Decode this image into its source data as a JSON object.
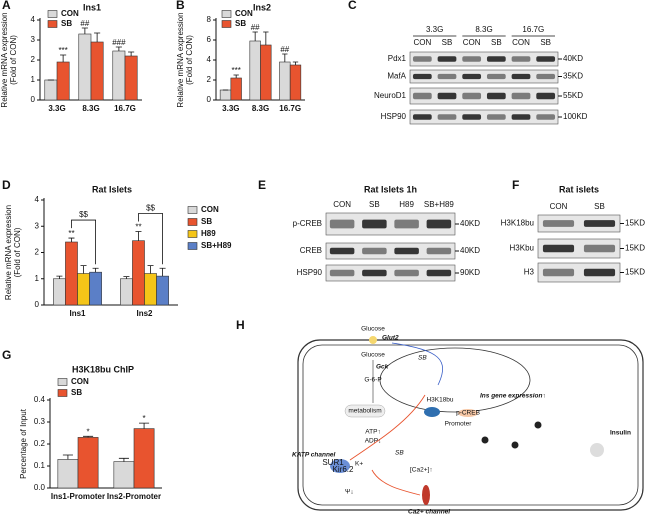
{
  "chart_data": [
    {
      "type": "bar",
      "panel": "A",
      "title": "Ins1",
      "y_label": [
        "Relative mRNA expression",
        "(Fold of CON)"
      ],
      "categories": [
        "3.3G",
        "8.3G",
        "16.7G"
      ],
      "ylim": [
        0,
        4
      ],
      "yticks": [
        0,
        1,
        2,
        3,
        4
      ],
      "series": [
        {
          "name": "CON",
          "color": "#d9d9d9",
          "values": [
            1,
            3.3,
            2.45
          ],
          "errors": [
            0,
            0.3,
            0.2
          ],
          "significance": [
            null,
            "##",
            "###"
          ]
        },
        {
          "name": "SB",
          "color": "#e8542f",
          "values": [
            1.9,
            2.9,
            2.2
          ],
          "errors": [
            0.35,
            0.45,
            0.2
          ],
          "significance": [
            "***",
            null,
            null
          ]
        }
      ]
    },
    {
      "type": "bar",
      "panel": "B",
      "title": "Ins2",
      "y_label": [
        "Relative mRNA expression",
        "(Fold of CON)"
      ],
      "categories": [
        "3.3G",
        "8.3G",
        "16.7G"
      ],
      "ylim": [
        0,
        8
      ],
      "yticks": [
        0,
        2,
        4,
        6,
        8
      ],
      "series": [
        {
          "name": "CON",
          "color": "#d9d9d9",
          "values": [
            1,
            5.9,
            3.8
          ],
          "errors": [
            0,
            0.9,
            0.8
          ],
          "significance": [
            null,
            "##",
            "##"
          ]
        },
        {
          "name": "SB",
          "color": "#e8542f",
          "values": [
            2.2,
            5.5,
            3.5
          ],
          "errors": [
            0.3,
            1.3,
            0.3
          ],
          "significance": [
            "***",
            null,
            null
          ]
        }
      ]
    },
    {
      "type": "bar",
      "panel": "D",
      "title": "Rat Islets",
      "y_label": [
        "Relative mRNA expression",
        "(Fold of CON)"
      ],
      "categories": [
        "Ins1",
        "Ins2"
      ],
      "ylim": [
        0,
        4
      ],
      "yticks": [
        0,
        1,
        2,
        3,
        4
      ],
      "bracket_labels": [
        "$$",
        "$$"
      ],
      "series": [
        {
          "name": "CON",
          "color": "#d9d9d9",
          "values": [
            1,
            1
          ],
          "errors": [
            0.1,
            0.08
          ],
          "significance": [
            null,
            null
          ]
        },
        {
          "name": "SB",
          "color": "#e8542f",
          "values": [
            2.4,
            2.45
          ],
          "errors": [
            0.15,
            0.35
          ],
          "significance": [
            "**",
            "**"
          ]
        },
        {
          "name": "H89",
          "color": "#f5c518",
          "values": [
            1.2,
            1.2
          ],
          "errors": [
            0.3,
            0.3
          ],
          "significance": [
            null,
            null
          ]
        },
        {
          "name": "SB+H89",
          "color": "#5b7fc7",
          "values": [
            1.25,
            1.1
          ],
          "errors": [
            0.15,
            0.3
          ],
          "significance": [
            null,
            null
          ]
        }
      ]
    },
    {
      "type": "bar",
      "panel": "G",
      "title": "H3K18bu ChIP",
      "y_label": [
        "Percentage of Input"
      ],
      "categories": [
        "Ins1-Promoter",
        "Ins2-Promoter"
      ],
      "ylim": [
        0,
        0.4
      ],
      "yticks": [
        {
          "value": 0,
          "label": "0.0"
        },
        0.1,
        0.2,
        0.3,
        0.4
      ],
      "series": [
        {
          "name": "CON",
          "color": "#d9d9d9",
          "values": [
            0.13,
            0.12
          ],
          "errors": [
            0.02,
            0.015
          ],
          "significance": [
            null,
            null
          ]
        },
        {
          "name": "SB",
          "color": "#e8542f",
          "values": [
            0.23,
            0.27
          ],
          "errors": [
            0.005,
            0.025
          ],
          "significance": [
            "*",
            "*"
          ]
        }
      ]
    }
  ],
  "blots": [
    {
      "panel": "C",
      "groups": [
        "3.3G",
        "8.3G",
        "16.7G"
      ],
      "lanes": [
        "CON",
        "SB",
        "CON",
        "SB",
        "CON",
        "SB"
      ],
      "rows": [
        "Pdx1",
        "MafA",
        "NeuroD1",
        "HSP90"
      ],
      "sizes": [
        "40KD",
        "35KD",
        "55KD",
        "100KD"
      ]
    },
    {
      "panel": "E",
      "title": "Rat Islets 1h",
      "lanes": [
        "CON",
        "SB",
        "H89",
        "SB+H89"
      ],
      "rows": [
        "p-CREB",
        "CREB",
        "HSP90"
      ],
      "sizes": [
        "40KD",
        "40KD",
        "90KD"
      ]
    },
    {
      "panel": "F",
      "title": "Rat islets",
      "lanes": [
        "CON",
        "SB"
      ],
      "rows": [
        "H3K18bu",
        "H3Kbu",
        "H3"
      ],
      "sizes": [
        "15KD",
        "15KD",
        "15KD"
      ]
    }
  ],
  "diagram": {
    "panel": "H",
    "glucose_out": "Glucose",
    "glut2": "Glut2",
    "sb_top": "SB",
    "glucose_in": "Glucose",
    "gck": "Gck",
    "g6p": "G-6-P",
    "metabolism": "metabolism",
    "atp": "ATP↑",
    "adp": "ADP↓",
    "h3k18bu": "H3K18bu",
    "ins_gene": "Ins gene expression↑",
    "pcreb": "p-CREB",
    "promoter": "Promoter",
    "insulin": "Insulin",
    "katp": "KATP channel",
    "kplus": "K+",
    "sb_mid": "SB",
    "ca": "[Ca2+]↑",
    "psi": "Ψ↓",
    "ca_channel": "Ca2+ channel",
    "kir": "Kir6.2",
    "sur": "SUR1"
  }
}
